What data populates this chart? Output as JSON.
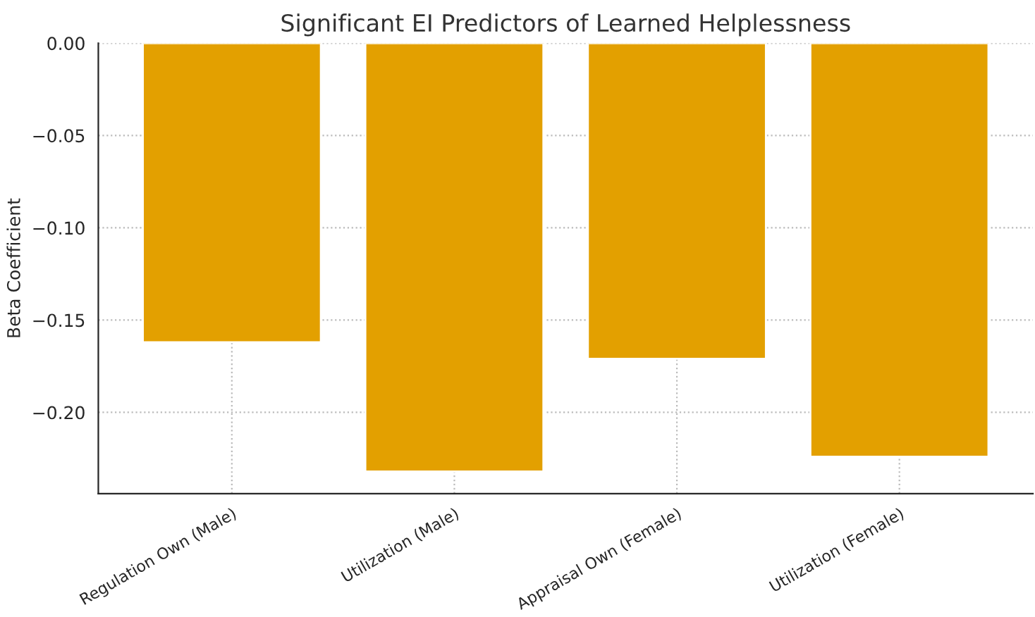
{
  "chart_data": {
    "type": "bar",
    "title": "Significant EI Predictors of Learned Helplessness",
    "ylabel": "Beta Coefficient",
    "categories": [
      "Regulation Own (Male)",
      "Utilization (Male)",
      "Appraisal Own (Female)",
      "Utilization (Female)"
    ],
    "values": [
      -0.162,
      -0.232,
      -0.171,
      -0.224
    ],
    "color": "#e3a000",
    "ylim": [
      -0.244,
      0
    ],
    "yticks": [
      {
        "value": 0,
        "label": "0.00"
      },
      {
        "value": -0.05,
        "label": "−0.05"
      },
      {
        "value": -0.1,
        "label": "−0.10"
      },
      {
        "value": -0.15,
        "label": "−0.15"
      },
      {
        "value": -0.2,
        "label": "−0.20"
      }
    ],
    "grid": true
  }
}
